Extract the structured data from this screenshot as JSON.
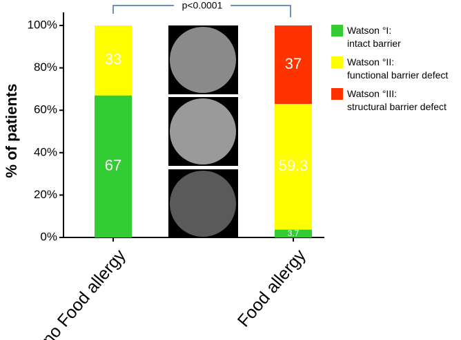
{
  "chart_data": {
    "type": "stacked_bar",
    "y_label": "% of patients",
    "annotation": "p<0.0001",
    "categories": [
      "no Food allergy",
      "Food allergy"
    ],
    "series": [
      {
        "name": "Watson °I:\nintact barrier",
        "color": "#33cc33",
        "values": [
          67,
          3.7
        ]
      },
      {
        "name": "Watson °II:\nfunctional barrier defect",
        "color": "#ffff00",
        "values": [
          33,
          59.3
        ]
      },
      {
        "name": "Watson °III:\nstructural barrier defect",
        "color": "#ff3300",
        "values": [
          null,
          37
        ]
      }
    ],
    "ylim": [
      0,
      100
    ],
    "yticks": [
      {
        "value": 0,
        "label": "0%"
      },
      {
        "value": 20,
        "label": "20%"
      },
      {
        "value": 40,
        "label": "40%"
      },
      {
        "value": 60,
        "label": "60%"
      },
      {
        "value": 80,
        "label": "80%"
      },
      {
        "value": 100,
        "label": "100%"
      }
    ]
  }
}
